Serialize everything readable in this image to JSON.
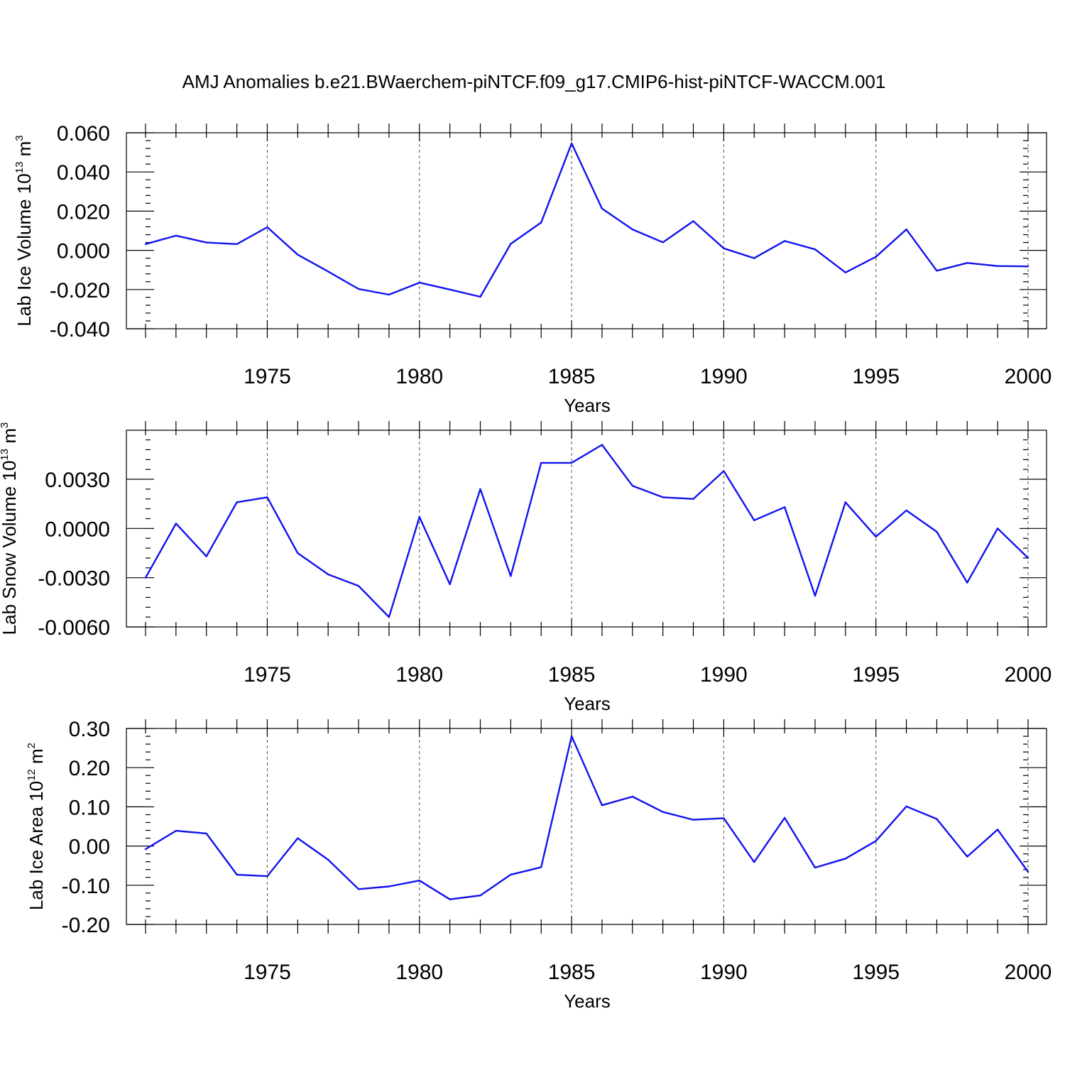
{
  "figure": {
    "title": "AMJ Anomalies b.e21.BWaerchem-piNTCF.f09_g17.CMIP6-hist-piNTCF-WACCM.001"
  },
  "style": {
    "line_color": "#1212f0",
    "axis_color": "#000000",
    "grid_color": "#555555"
  },
  "chart_data": [
    {
      "type": "line",
      "ylabel": "Lab Ice Volume 10",
      "ylabel_exp": "13",
      "ylabel_unit": "m",
      "ylabel_unit_exp": "3",
      "xlabel": "Years",
      "xlim": [
        1971,
        2000
      ],
      "ylim": [
        -0.04,
        0.06
      ],
      "xticks": [
        1975,
        1980,
        1985,
        1990,
        1995,
        2000
      ],
      "xtick_labels": [
        "1975",
        "1980",
        "1985",
        "1990",
        "1995",
        "2000"
      ],
      "yticks": [
        -0.04,
        -0.02,
        0.0,
        0.02,
        0.04,
        0.06
      ],
      "ytick_labels": [
        "-0.040",
        "-0.020",
        "0.000",
        "0.020",
        "0.040",
        "0.060"
      ],
      "x": [
        1971,
        1972,
        1973,
        1974,
        1975,
        1976,
        1977,
        1978,
        1979,
        1980,
        1981,
        1982,
        1983,
        1984,
        1985,
        1986,
        1987,
        1988,
        1989,
        1990,
        1991,
        1992,
        1993,
        1994,
        1995,
        1996,
        1997,
        1998,
        1999,
        2000
      ],
      "y": [
        0.0032,
        0.0075,
        0.004,
        0.0032,
        0.0118,
        -0.0022,
        -0.0108,
        -0.0197,
        -0.0226,
        -0.0165,
        -0.02,
        -0.0237,
        0.0033,
        0.0142,
        0.0546,
        0.0213,
        0.0107,
        0.0041,
        0.0149,
        0.001,
        -0.004,
        0.0048,
        0.0005,
        -0.0113,
        -0.0033,
        0.0107,
        -0.0104,
        -0.0064,
        -0.008,
        -0.0082
      ]
    },
    {
      "type": "line",
      "ylabel": "Lab Snow Volume 10",
      "ylabel_exp": "13",
      "ylabel_unit": "m",
      "ylabel_unit_exp": "3",
      "xlabel": "Years",
      "xlim": [
        1971,
        2000
      ],
      "ylim": [
        -0.006,
        0.006
      ],
      "xticks": [
        1975,
        1980,
        1985,
        1990,
        1995,
        2000
      ],
      "xtick_labels": [
        "1975",
        "1980",
        "1985",
        "1990",
        "1995",
        "2000"
      ],
      "yticks": [
        -0.006,
        -0.003,
        0.0,
        0.003
      ],
      "ytick_labels": [
        "-0.0060",
        "-0.0030",
        "0.0000",
        "0.0030"
      ],
      "x": [
        1971,
        1972,
        1973,
        1974,
        1975,
        1976,
        1977,
        1978,
        1979,
        1980,
        1981,
        1982,
        1983,
        1984,
        1985,
        1986,
        1987,
        1988,
        1989,
        1990,
        1991,
        1992,
        1993,
        1994,
        1995,
        1996,
        1997,
        1998,
        1999,
        2000
      ],
      "y": [
        -0.003,
        0.0003,
        -0.0017,
        0.0016,
        0.0019,
        -0.0015,
        -0.0028,
        -0.0035,
        -0.0054,
        0.0007,
        -0.0034,
        0.0024,
        -0.0029,
        0.004,
        0.004,
        0.0051,
        0.0026,
        0.0019,
        0.0018,
        0.0035,
        0.0005,
        0.0013,
        -0.0041,
        0.0016,
        -0.0005,
        0.0011,
        -0.0002,
        -0.0033,
        0.0,
        -0.0018
      ]
    },
    {
      "type": "line",
      "ylabel": "Lab Ice Area 10",
      "ylabel_exp": "12",
      "ylabel_unit": "m",
      "ylabel_unit_exp": "2",
      "xlabel": "Years",
      "xlim": [
        1971,
        2000
      ],
      "ylim": [
        -0.2,
        0.3
      ],
      "xticks": [
        1975,
        1980,
        1985,
        1990,
        1995,
        2000
      ],
      "xtick_labels": [
        "1975",
        "1980",
        "1985",
        "1990",
        "1995",
        "2000"
      ],
      "yticks": [
        -0.2,
        -0.1,
        0.0,
        0.1,
        0.2,
        0.3
      ],
      "ytick_labels": [
        "-0.20",
        "-0.10",
        "0.00",
        "0.10",
        "0.20",
        "0.30"
      ],
      "x": [
        1971,
        1972,
        1973,
        1974,
        1975,
        1976,
        1977,
        1978,
        1979,
        1980,
        1981,
        1982,
        1983,
        1984,
        1985,
        1986,
        1987,
        1988,
        1989,
        1990,
        1991,
        1992,
        1993,
        1994,
        1995,
        1996,
        1997,
        1998,
        1999,
        2000
      ],
      "y": [
        -0.008,
        0.039,
        0.032,
        -0.073,
        -0.077,
        0.02,
        -0.035,
        -0.11,
        -0.103,
        -0.088,
        -0.136,
        -0.126,
        -0.073,
        -0.054,
        0.28,
        0.104,
        0.126,
        0.087,
        0.067,
        0.071,
        -0.041,
        0.072,
        -0.055,
        -0.032,
        0.013,
        0.101,
        0.069,
        -0.027,
        0.042,
        -0.066
      ]
    }
  ]
}
